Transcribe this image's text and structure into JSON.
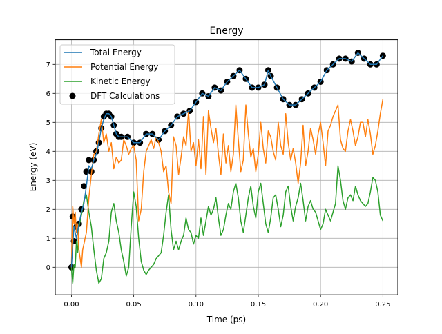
{
  "chart_data": {
    "type": "line",
    "title": "Energy",
    "xlabel": "Time (ps)",
    "ylabel": "Energy (eV)",
    "xlim": [
      -0.013,
      0.262
    ],
    "ylim": [
      -0.95,
      7.85
    ],
    "xticks": [
      0.0,
      0.05,
      0.1,
      0.15,
      0.2,
      0.25
    ],
    "xtick_labels": [
      "0.00",
      "0.05",
      "0.10",
      "0.15",
      "0.20",
      "0.25"
    ],
    "yticks": [
      0,
      1,
      2,
      3,
      4,
      5,
      6,
      7
    ],
    "ytick_labels": [
      "0",
      "1",
      "2",
      "3",
      "4",
      "5",
      "6",
      "7"
    ],
    "grid": true,
    "legend_position": "top-left",
    "series": [
      {
        "name": "Total Energy",
        "style": "line",
        "color": "#1f77b4",
        "x": [
          0.0,
          0.002,
          0.004,
          0.006,
          0.008,
          0.01,
          0.012,
          0.014,
          0.016,
          0.018,
          0.02,
          0.022,
          0.024,
          0.026,
          0.028,
          0.03,
          0.032,
          0.034,
          0.036,
          0.038,
          0.04,
          0.045,
          0.05,
          0.055,
          0.06,
          0.065,
          0.07,
          0.075,
          0.08,
          0.085,
          0.09,
          0.095,
          0.1,
          0.105,
          0.11,
          0.115,
          0.12,
          0.125,
          0.13,
          0.135,
          0.14,
          0.145,
          0.15,
          0.155,
          0.158,
          0.16,
          0.165,
          0.17,
          0.175,
          0.18,
          0.185,
          0.19,
          0.195,
          0.2,
          0.205,
          0.21,
          0.215,
          0.22,
          0.225,
          0.23,
          0.235,
          0.24,
          0.245,
          0.25
        ],
        "y": [
          0.0,
          1.4,
          1.0,
          1.5,
          1.9,
          2.2,
          2.8,
          3.5,
          3.4,
          3.7,
          3.9,
          4.3,
          4.8,
          5.1,
          5.3,
          5.3,
          5.2,
          4.9,
          4.6,
          4.5,
          4.5,
          4.5,
          4.3,
          4.3,
          4.6,
          4.6,
          4.4,
          4.7,
          4.9,
          5.2,
          5.3,
          5.4,
          5.7,
          6.0,
          5.9,
          6.2,
          6.1,
          6.4,
          6.6,
          6.8,
          6.5,
          6.2,
          6.2,
          6.3,
          6.8,
          6.6,
          6.2,
          5.8,
          5.6,
          5.6,
          5.8,
          6.0,
          6.2,
          6.4,
          6.8,
          7.0,
          7.2,
          7.2,
          7.1,
          7.4,
          7.2,
          7.0,
          7.0,
          7.3
        ]
      },
      {
        "name": "Potential Energy",
        "style": "line",
        "color": "#ff7f0e",
        "x": [
          0.0,
          0.001,
          0.002,
          0.003,
          0.004,
          0.005,
          0.006,
          0.008,
          0.009,
          0.01,
          0.012,
          0.014,
          0.016,
          0.018,
          0.02,
          0.022,
          0.024,
          0.026,
          0.028,
          0.03,
          0.032,
          0.034,
          0.036,
          0.038,
          0.04,
          0.042,
          0.044,
          0.046,
          0.048,
          0.05,
          0.052,
          0.054,
          0.056,
          0.058,
          0.06,
          0.062,
          0.064,
          0.066,
          0.068,
          0.07,
          0.072,
          0.074,
          0.076,
          0.078,
          0.08,
          0.082,
          0.084,
          0.086,
          0.088,
          0.09,
          0.092,
          0.094,
          0.096,
          0.098,
          0.1,
          0.102,
          0.104,
          0.106,
          0.108,
          0.11,
          0.112,
          0.114,
          0.116,
          0.118,
          0.12,
          0.122,
          0.124,
          0.126,
          0.128,
          0.13,
          0.132,
          0.134,
          0.136,
          0.138,
          0.14,
          0.142,
          0.144,
          0.146,
          0.148,
          0.15,
          0.152,
          0.154,
          0.156,
          0.158,
          0.16,
          0.162,
          0.164,
          0.166,
          0.168,
          0.17,
          0.172,
          0.174,
          0.176,
          0.178,
          0.18,
          0.182,
          0.184,
          0.186,
          0.188,
          0.19,
          0.192,
          0.194,
          0.196,
          0.198,
          0.2,
          0.202,
          0.204,
          0.206,
          0.208,
          0.21,
          0.212,
          0.214,
          0.216,
          0.218,
          0.22,
          0.222,
          0.224,
          0.226,
          0.228,
          0.23,
          0.232,
          0.234,
          0.236,
          0.238,
          0.24,
          0.242,
          0.244,
          0.246,
          0.248,
          0.25
        ],
        "y": [
          0.0,
          2.1,
          1.5,
          1.9,
          1.2,
          1.5,
          0.6,
          0.0,
          0.6,
          0.8,
          1.2,
          2.4,
          3.2,
          3.9,
          4.0,
          4.6,
          5.1,
          4.3,
          4.6,
          4.0,
          4.3,
          3.4,
          3.8,
          3.6,
          3.7,
          4.4,
          4.2,
          3.9,
          4.1,
          4.2,
          3.7,
          1.6,
          2.0,
          3.3,
          4.0,
          4.2,
          4.4,
          4.1,
          4.5,
          4.3,
          4.0,
          3.3,
          3.5,
          2.6,
          2.2,
          4.5,
          4.2,
          3.2,
          3.8,
          4.5,
          4.2,
          5.4,
          4.0,
          4.3,
          3.5,
          4.4,
          3.4,
          5.2,
          3.2,
          5.4,
          4.8,
          4.3,
          4.8,
          3.9,
          3.2,
          4.6,
          3.6,
          4.2,
          3.3,
          3.9,
          5.6,
          4.4,
          3.3,
          3.7,
          5.6,
          4.6,
          3.8,
          4.1,
          3.3,
          3.9,
          5.0,
          4.1,
          3.6,
          4.7,
          4.5,
          4.0,
          3.7,
          5.0,
          4.2,
          3.9,
          5.3,
          4.3,
          3.7,
          4.1,
          3.6,
          2.9,
          3.6,
          4.9,
          3.5,
          4.0,
          4.8,
          4.4,
          3.9,
          4.6,
          5.0,
          4.3,
          3.5,
          4.7,
          4.9,
          5.2,
          5.4,
          5.6,
          4.4,
          4.1,
          4.0,
          4.7,
          5.1,
          4.7,
          4.2,
          4.5,
          5.0,
          5.0,
          4.5,
          5.1,
          4.6,
          3.9,
          4.2,
          4.7,
          5.3,
          5.8
        ]
      },
      {
        "name": "Kinetic Energy",
        "style": "line",
        "color": "#2ca02c",
        "x": [
          0.0,
          0.001,
          0.002,
          0.003,
          0.004,
          0.005,
          0.006,
          0.008,
          0.01,
          0.012,
          0.014,
          0.016,
          0.018,
          0.02,
          0.022,
          0.024,
          0.026,
          0.028,
          0.03,
          0.032,
          0.034,
          0.036,
          0.038,
          0.04,
          0.042,
          0.044,
          0.046,
          0.048,
          0.05,
          0.052,
          0.054,
          0.056,
          0.058,
          0.06,
          0.062,
          0.064,
          0.066,
          0.068,
          0.07,
          0.072,
          0.074,
          0.076,
          0.078,
          0.08,
          0.082,
          0.084,
          0.086,
          0.088,
          0.09,
          0.092,
          0.094,
          0.096,
          0.098,
          0.1,
          0.102,
          0.104,
          0.106,
          0.108,
          0.11,
          0.112,
          0.114,
          0.116,
          0.118,
          0.12,
          0.122,
          0.124,
          0.126,
          0.128,
          0.13,
          0.132,
          0.134,
          0.136,
          0.138,
          0.14,
          0.142,
          0.144,
          0.146,
          0.148,
          0.15,
          0.152,
          0.154,
          0.156,
          0.158,
          0.16,
          0.162,
          0.164,
          0.166,
          0.168,
          0.17,
          0.172,
          0.174,
          0.176,
          0.178,
          0.18,
          0.182,
          0.184,
          0.186,
          0.188,
          0.19,
          0.192,
          0.194,
          0.196,
          0.198,
          0.2,
          0.202,
          0.204,
          0.206,
          0.208,
          0.21,
          0.212,
          0.214,
          0.216,
          0.218,
          0.22,
          0.222,
          0.224,
          0.226,
          0.228,
          0.23,
          0.232,
          0.234,
          0.236,
          0.238,
          0.24,
          0.242,
          0.244,
          0.246,
          0.248,
          0.25
        ],
        "y": [
          0.0,
          -0.55,
          0.1,
          0.0,
          0.9,
          0.5,
          1.4,
          1.8,
          2.3,
          2.5,
          1.9,
          1.4,
          0.6,
          -0.1,
          -0.55,
          -0.4,
          0.3,
          0.5,
          0.9,
          1.9,
          2.2,
          1.6,
          1.2,
          0.6,
          0.2,
          -0.3,
          0.0,
          1.4,
          2.6,
          2.1,
          1.0,
          0.2,
          -0.1,
          -0.25,
          -0.1,
          0.0,
          0.1,
          0.3,
          0.4,
          0.5,
          1.1,
          1.9,
          2.5,
          1.3,
          0.6,
          0.9,
          0.6,
          0.9,
          1.1,
          1.7,
          1.3,
          1.2,
          0.8,
          1.1,
          1.0,
          1.7,
          1.1,
          1.6,
          2.1,
          1.8,
          2.0,
          2.4,
          1.7,
          1.1,
          1.3,
          1.8,
          2.2,
          2.0,
          2.6,
          2.9,
          2.4,
          1.6,
          1.2,
          1.8,
          2.4,
          2.8,
          2.1,
          1.7,
          2.6,
          2.9,
          2.2,
          1.5,
          1.2,
          1.7,
          2.4,
          2.5,
          2.0,
          1.4,
          1.8,
          2.6,
          2.8,
          2.1,
          1.6,
          2.1,
          2.4,
          2.9,
          2.3,
          1.6,
          2.1,
          2.3,
          2.0,
          1.9,
          1.6,
          1.3,
          1.5,
          2.0,
          1.8,
          1.6,
          1.9,
          2.2,
          3.5,
          3.0,
          2.3,
          2.0,
          2.4,
          2.5,
          2.3,
          2.8,
          2.5,
          2.3,
          2.2,
          2.1,
          2.2,
          2.6,
          3.1,
          3.0,
          2.6,
          1.8,
          1.6
        ]
      },
      {
        "name": "DFT Calculations",
        "style": "scatter",
        "color": "#000000",
        "x": [
          0.0,
          0.001,
          0.002,
          0.004,
          0.006,
          0.008,
          0.01,
          0.012,
          0.014,
          0.016,
          0.018,
          0.02,
          0.022,
          0.024,
          0.026,
          0.028,
          0.03,
          0.032,
          0.034,
          0.036,
          0.038,
          0.04,
          0.045,
          0.05,
          0.055,
          0.06,
          0.065,
          0.07,
          0.075,
          0.08,
          0.085,
          0.09,
          0.095,
          0.1,
          0.105,
          0.11,
          0.115,
          0.12,
          0.125,
          0.13,
          0.135,
          0.14,
          0.145,
          0.15,
          0.155,
          0.158,
          0.16,
          0.165,
          0.17,
          0.175,
          0.18,
          0.185,
          0.19,
          0.195,
          0.2,
          0.205,
          0.21,
          0.215,
          0.22,
          0.225,
          0.23,
          0.235,
          0.24,
          0.245,
          0.25
        ],
        "y": [
          0.0,
          1.75,
          0.9,
          1.4,
          1.5,
          2.0,
          2.8,
          3.3,
          3.7,
          3.3,
          3.7,
          4.0,
          4.3,
          4.8,
          5.2,
          5.3,
          5.3,
          5.2,
          4.9,
          4.6,
          4.5,
          4.5,
          4.5,
          4.3,
          4.3,
          4.6,
          4.6,
          4.4,
          4.7,
          4.9,
          5.2,
          5.3,
          5.4,
          5.7,
          6.0,
          5.9,
          6.2,
          6.1,
          6.4,
          6.6,
          6.8,
          6.5,
          6.2,
          6.2,
          6.3,
          6.8,
          6.6,
          6.2,
          5.8,
          5.6,
          5.6,
          5.8,
          6.0,
          6.2,
          6.4,
          6.8,
          7.0,
          7.2,
          7.2,
          7.1,
          7.4,
          7.2,
          7.0,
          7.0,
          7.3
        ]
      }
    ]
  }
}
